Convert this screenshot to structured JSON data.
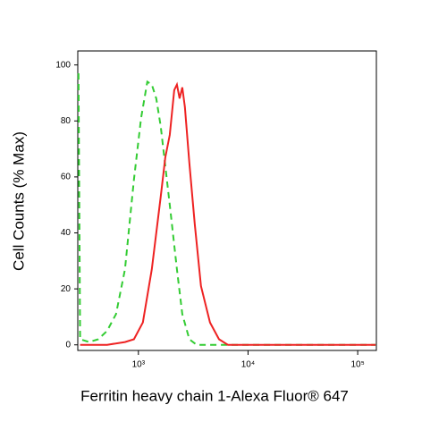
{
  "chart_data": {
    "type": "line",
    "xlabel": "Ferritin heavy chain 1-Alexa Fluor® 647",
    "ylabel": "Cell Counts (% Max)",
    "xscale": "log",
    "xlim": [
      280,
      148000
    ],
    "ylim": [
      -2,
      105
    ],
    "xticks": [
      {
        "value": 1000,
        "label": "10³"
      },
      {
        "value": 10000,
        "label": "10⁴"
      },
      {
        "value": 100000,
        "label": "10⁵"
      }
    ],
    "yticks": [
      0,
      20,
      40,
      60,
      80,
      100
    ],
    "series": [
      {
        "color": "#33cc33",
        "dash": true,
        "x": [
          284,
          294,
          356,
          430,
          518,
          625,
          755,
          910,
          1058,
          1207,
          1326,
          1456,
          1600,
          1931,
          2245,
          2513,
          2917,
          3397,
          6546,
          15280,
          39080,
          145600
        ],
        "values": [
          97,
          2,
          1,
          2,
          5,
          11,
          27,
          59,
          81,
          94,
          93,
          88,
          78,
          50,
          27,
          11,
          2,
          0,
          0,
          0,
          0,
          0
        ]
      },
      {
        "color": "#ee2222",
        "dash": false,
        "x": [
          294,
          518,
          755,
          910,
          1099,
          1326,
          1600,
          1758,
          1931,
          2122,
          2245,
          2377,
          2513,
          2656,
          2917,
          3266,
          3724,
          4498,
          5433,
          6546,
          15280,
          39080,
          145600
        ],
        "values": [
          0,
          0,
          1,
          2,
          8,
          27,
          53,
          67,
          75,
          91,
          93,
          88,
          92,
          85,
          65,
          43,
          21,
          8,
          2,
          0,
          0,
          0,
          0
        ]
      }
    ]
  }
}
